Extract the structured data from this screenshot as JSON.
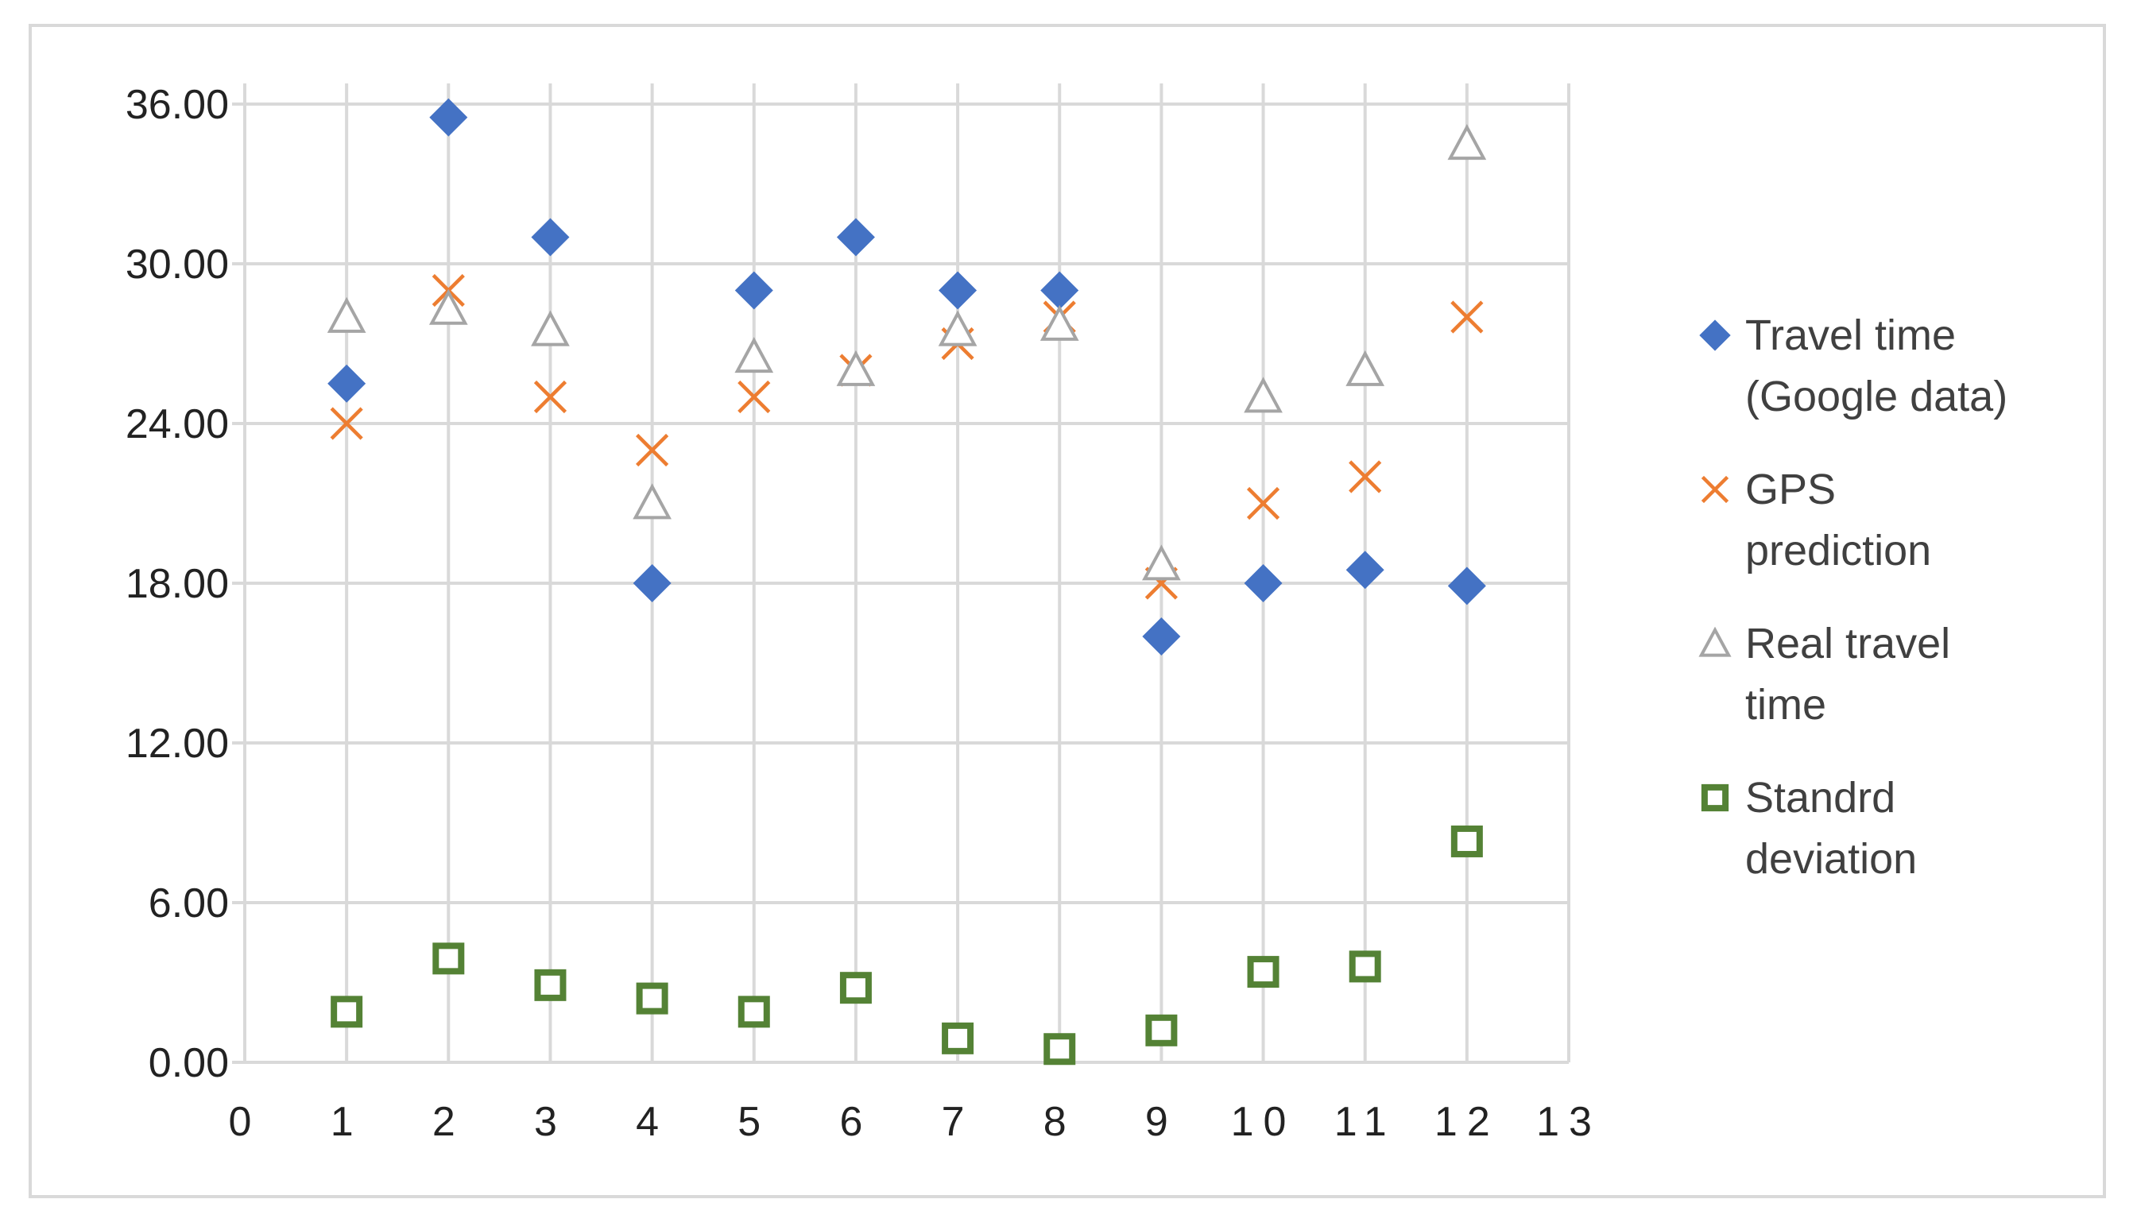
{
  "chart_data": {
    "type": "scatter",
    "xlim": [
      0,
      13
    ],
    "ylim": [
      0,
      36
    ],
    "x_ticks": [
      "0",
      "1",
      "2",
      "3",
      "4",
      "5",
      "6",
      "7",
      "8",
      "9",
      "10",
      "11",
      "12",
      "13"
    ],
    "y_ticks": [
      "0.00",
      "6.00",
      "12.00",
      "18.00",
      "24.00",
      "30.00",
      "36.00"
    ],
    "grid": true,
    "legend_position": "right",
    "x": [
      1,
      2,
      3,
      4,
      5,
      6,
      7,
      8,
      9,
      10,
      11,
      12
    ],
    "series": [
      {
        "name": "Travel time (Google data)",
        "legend_lines": [
          "Travel time",
          "(Google data)"
        ],
        "marker": "diamond",
        "color": "#4472c4",
        "values": [
          25.5,
          35.5,
          31.0,
          18.0,
          29.0,
          31.0,
          29.0,
          29.0,
          16.0,
          18.0,
          18.5,
          17.9
        ]
      },
      {
        "name": "GPS prediction",
        "legend_lines": [
          "GPS",
          "prediction"
        ],
        "marker": "x",
        "color": "#ed7d31",
        "values": [
          24.0,
          29.0,
          25.0,
          23.0,
          25.0,
          26.0,
          27.0,
          28.0,
          18.0,
          21.0,
          22.0,
          28.0
        ]
      },
      {
        "name": "Real travel time",
        "legend_lines": [
          "Real travel",
          "time"
        ],
        "marker": "triangle",
        "color": "#a5a5a5",
        "values": [
          28.0,
          28.3,
          27.5,
          21.0,
          26.5,
          26.0,
          27.5,
          27.7,
          18.7,
          25.0,
          26.0,
          34.5
        ]
      },
      {
        "name": "Standrd deviation",
        "legend_lines": [
          "Standrd",
          "deviation"
        ],
        "marker": "square",
        "color": "#548235",
        "values": [
          1.9,
          3.9,
          2.9,
          2.4,
          1.9,
          2.8,
          0.9,
          0.5,
          1.2,
          3.4,
          3.6,
          8.3
        ]
      }
    ]
  }
}
